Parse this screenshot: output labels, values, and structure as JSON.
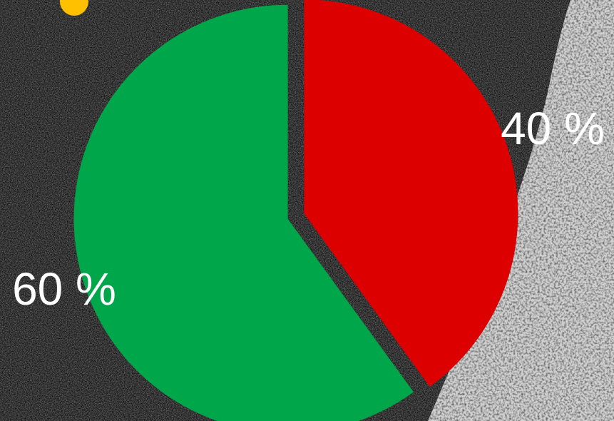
{
  "chart_data": {
    "type": "pie",
    "slices": [
      {
        "label": "40 %",
        "value": 40,
        "color": "#dd0000"
      },
      {
        "label": "60 %",
        "value": 60,
        "color": "#00a64a"
      }
    ],
    "exploded": true
  },
  "colors": {
    "background_asphalt": "#1c1c1c",
    "road_marking": "#d9d9d9",
    "accent_dot": "#ffc000"
  }
}
